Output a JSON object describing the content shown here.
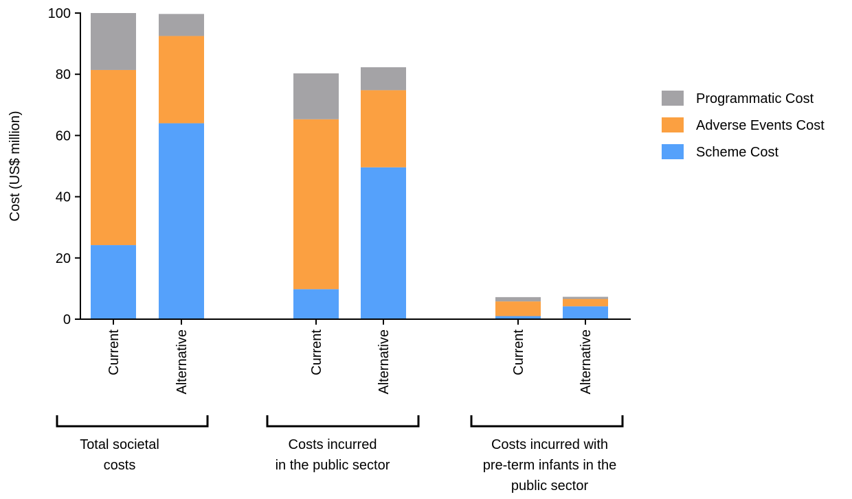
{
  "chart_data": {
    "type": "bar",
    "stacked": true,
    "title": "",
    "xlabel": "",
    "ylabel": "Cost (US$ million)",
    "ylim": [
      0,
      100
    ],
    "yticks": [
      0,
      20,
      40,
      60,
      80,
      100
    ],
    "grid": false,
    "legend_position": "right",
    "categories": [
      "Current",
      "Alternative",
      "Current",
      "Alternative",
      "Current",
      "Alternative"
    ],
    "groups": [
      {
        "label_lines": [
          "Total societal",
          "costs"
        ],
        "categories": [
          0,
          1
        ]
      },
      {
        "label_lines": [
          "Costs incurred",
          "in the public sector"
        ],
        "categories": [
          2,
          3
        ]
      },
      {
        "label_lines": [
          "Costs incurred with",
          "pre-term infants in the",
          "public sector"
        ],
        "categories": [
          4,
          5
        ]
      }
    ],
    "series": [
      {
        "name": "Scheme Cost",
        "color": "#55A1FB",
        "values": [
          24.2,
          64.0,
          9.8,
          49.6,
          1.0,
          4.2
        ]
      },
      {
        "name": "Adverse Events Cost",
        "color": "#FBA041",
        "values": [
          57.2,
          28.5,
          55.5,
          25.2,
          4.8,
          2.4
        ]
      },
      {
        "name": "Programmatic Cost",
        "color": "#A4A3A6",
        "values": [
          18.6,
          7.2,
          15.0,
          7.5,
          1.4,
          0.7
        ]
      }
    ]
  }
}
